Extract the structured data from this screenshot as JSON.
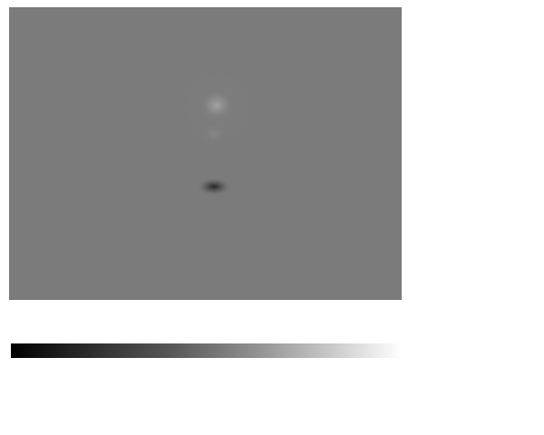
{
  "figure": {
    "type": "grayscale-image-with-colorbar",
    "image": {
      "background_color": "#7b7b7b",
      "features": [
        {
          "kind": "bright-blob",
          "color": "#a3a3a3"
        },
        {
          "kind": "faint-bright-blob",
          "color": "#888888"
        },
        {
          "kind": "dark-blob",
          "color": "#2a2a2a"
        }
      ]
    },
    "colorbar": {
      "orientation": "horizontal",
      "colormap": "gray",
      "start_color": "#000000",
      "end_color": "#ffffff"
    }
  }
}
